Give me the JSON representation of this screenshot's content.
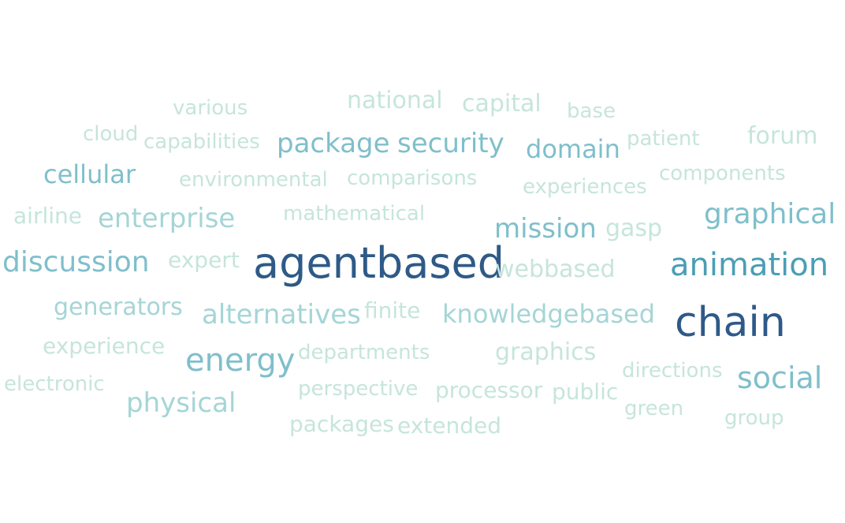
{
  "palette": {
    "c1": "#2e5a87",
    "c2": "#4a9eb5",
    "c3": "#7fbfcb",
    "c4": "#a5d5d6",
    "c5": "#c6e5dc"
  },
  "words": [
    {
      "text": "various",
      "level": 5
    },
    {
      "text": "national",
      "level": 5
    },
    {
      "text": "capital",
      "level": 5
    },
    {
      "text": "base",
      "level": 5
    },
    {
      "text": "cloud",
      "level": 5
    },
    {
      "text": "capabilities",
      "level": 5
    },
    {
      "text": "package",
      "level": 3
    },
    {
      "text": "security",
      "level": 3
    },
    {
      "text": "domain",
      "level": 3
    },
    {
      "text": "patient",
      "level": 5
    },
    {
      "text": "forum",
      "level": 5
    },
    {
      "text": "cellular",
      "level": 3
    },
    {
      "text": "environmental",
      "level": 5
    },
    {
      "text": "comparisons",
      "level": 5
    },
    {
      "text": "experiences",
      "level": 5
    },
    {
      "text": "components",
      "level": 5
    },
    {
      "text": "airline",
      "level": 5
    },
    {
      "text": "enterprise",
      "level": 4
    },
    {
      "text": "mathematical",
      "level": 5
    },
    {
      "text": "mission",
      "level": 3
    },
    {
      "text": "gasp",
      "level": 5
    },
    {
      "text": "graphical",
      "level": 3
    },
    {
      "text": "discussion",
      "level": 3
    },
    {
      "text": "expert",
      "level": 5
    },
    {
      "text": "agentbased",
      "level": 1
    },
    {
      "text": "webbased",
      "level": 5
    },
    {
      "text": "animation",
      "level": 2
    },
    {
      "text": "generators",
      "level": 4
    },
    {
      "text": "alternatives",
      "level": 4
    },
    {
      "text": "finite",
      "level": 5
    },
    {
      "text": "knowledgebased",
      "level": 4
    },
    {
      "text": "chain",
      "level": 1
    },
    {
      "text": "experience",
      "level": 5
    },
    {
      "text": "energy",
      "level": 3
    },
    {
      "text": "departments",
      "level": 5
    },
    {
      "text": "graphics",
      "level": 5
    },
    {
      "text": "directions",
      "level": 5
    },
    {
      "text": "social",
      "level": 3
    },
    {
      "text": "electronic",
      "level": 5
    },
    {
      "text": "physical",
      "level": 4
    },
    {
      "text": "perspective",
      "level": 5
    },
    {
      "text": "processor",
      "level": 5
    },
    {
      "text": "public",
      "level": 5
    },
    {
      "text": "green",
      "level": 5
    },
    {
      "text": "group",
      "level": 5
    },
    {
      "text": "packages",
      "level": 5
    },
    {
      "text": "extended",
      "level": 5
    }
  ]
}
